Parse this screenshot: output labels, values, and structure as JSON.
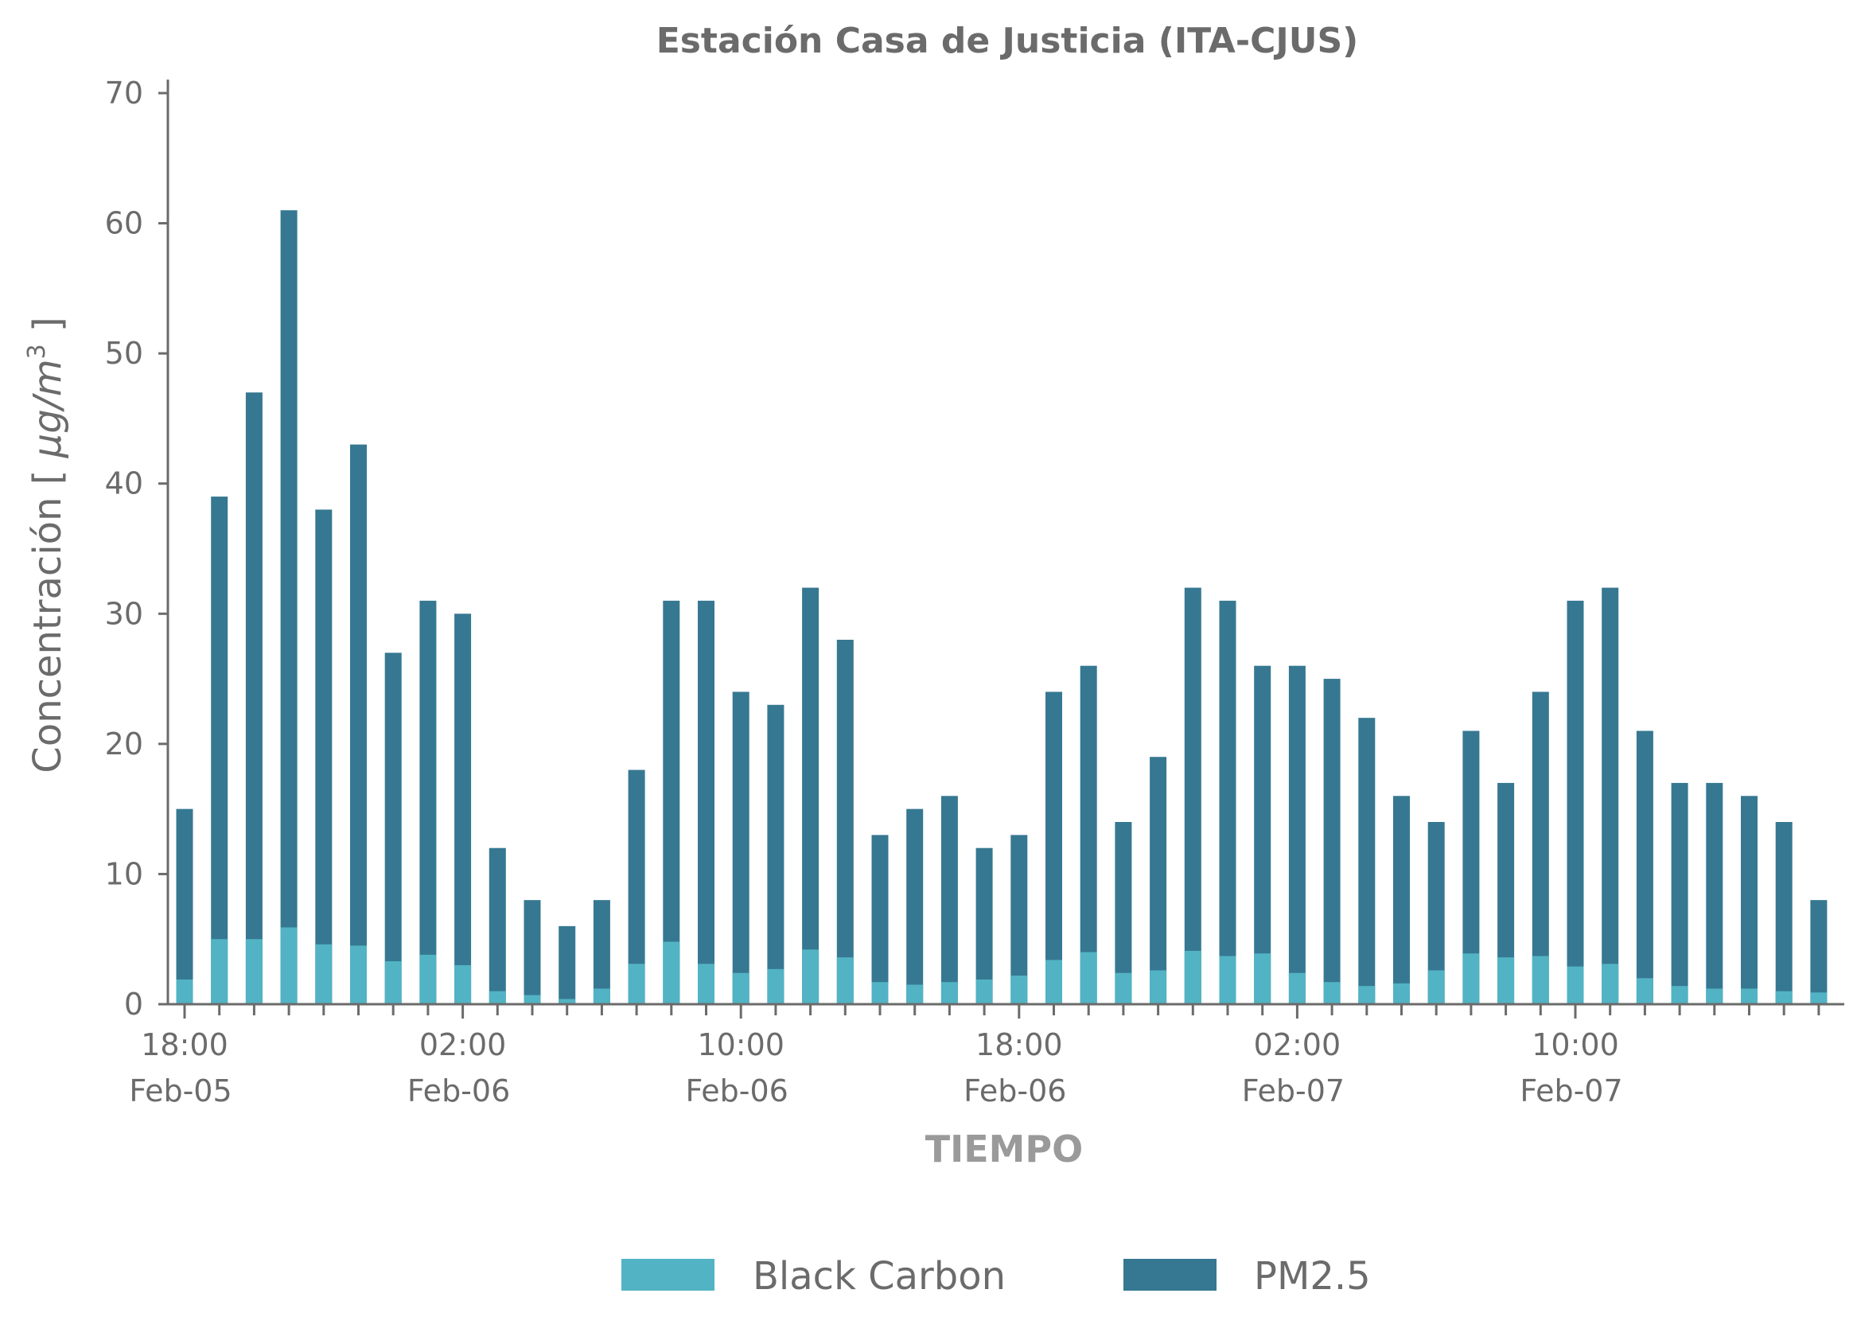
{
  "chart_data": {
    "type": "bar",
    "stacked": true,
    "title": "Estación Casa de Justicia (ITA-CJUS)",
    "xlabel": "TIEMPO",
    "ylabel": {
      "prefix": "Concentración  [ ",
      "unit": "µg/m",
      "sup": "3",
      "suffix": " ]"
    },
    "ylim": [
      0,
      70
    ],
    "yticks": [
      0,
      10,
      20,
      30,
      40,
      50,
      60,
      70
    ],
    "xtick_labels": [
      {
        "index": 0,
        "time": "18:00",
        "date": "Feb-05"
      },
      {
        "index": 8,
        "time": "02:00",
        "date": "Feb-06"
      },
      {
        "index": 16,
        "time": "10:00",
        "date": "Feb-06"
      },
      {
        "index": 24,
        "time": "18:00",
        "date": "Feb-06"
      },
      {
        "index": 32,
        "time": "02:00",
        "date": "Feb-07"
      },
      {
        "index": 40,
        "time": "10:00",
        "date": "Feb-07"
      }
    ],
    "x_start": "Feb-05 18:00",
    "x_step": "1 hour",
    "grid": false,
    "legend_position": "bottom-center",
    "series": [
      {
        "name": "Black Carbon",
        "color": "#52b3c4",
        "values": [
          1.9,
          5.0,
          5.0,
          5.9,
          4.6,
          4.5,
          3.3,
          3.8,
          3.0,
          1.0,
          0.7,
          0.4,
          1.2,
          3.1,
          4.8,
          3.1,
          2.4,
          2.7,
          4.2,
          3.6,
          1.7,
          1.5,
          1.7,
          1.9,
          2.2,
          3.4,
          4.0,
          2.4,
          2.6,
          4.1,
          3.7,
          3.9,
          2.4,
          1.7,
          1.4,
          1.6,
          2.6,
          3.9,
          3.6,
          3.7,
          2.9,
          3.1,
          2.0,
          1.4,
          1.2,
          1.2,
          1.0,
          0.9
        ]
      },
      {
        "name": "PM2.5",
        "color": "#367891",
        "values": [
          15,
          39,
          47,
          61,
          38,
          43,
          27,
          31,
          30,
          12,
          8,
          6,
          8,
          18,
          31,
          31,
          24,
          23,
          32,
          28,
          13,
          15,
          16,
          12,
          13,
          24,
          26,
          14,
          19,
          32,
          31,
          26,
          26,
          25,
          22,
          16,
          14,
          21,
          17,
          24,
          31,
          32,
          21,
          17,
          17,
          16,
          14,
          8
        ]
      }
    ]
  }
}
